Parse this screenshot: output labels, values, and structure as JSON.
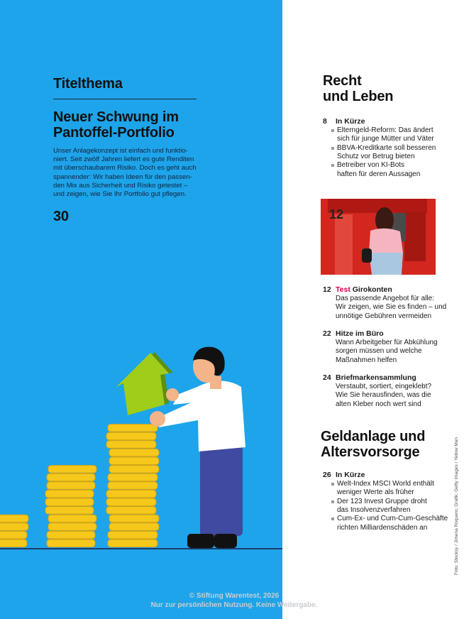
{
  "left": {
    "section": "Titelthema",
    "headline": [
      "Neuer Schwung im",
      "Pantoffel-Portfolio"
    ],
    "body": [
      "Unser Anlagekonzept ist einfach und funktio-",
      "niert. Seit zwölf Jahren liefert es gute Renditen",
      "mit überschaubarem Risiko. Doch es geht auch",
      "spannender: Wir haben Ideen für den passen-",
      "den Mix aus Sicherheit und Risiko getestet –",
      "und zeigen, wie Sie Ihr Portfolio gut pflegen."
    ],
    "page": "30"
  },
  "right": {
    "section1": {
      "heading": [
        "Recht",
        "und Leben"
      ],
      "entries": [
        {
          "page": "8",
          "title": "In Kürze",
          "bullets": [
            [
              "Elterngeld-Reform: Das ändert",
              "sich für junge Mütter und Väter"
            ],
            [
              "BBVA-Kreditkarte soll besseren",
              "Schutz vor Betrug bieten"
            ],
            [
              "Betreiber von KI-Bots",
              "haften für deren Aussagen"
            ]
          ]
        },
        {
          "page": "12",
          "tag": "Test",
          "title": "Girokonten",
          "text": [
            "Das passende Angebot für alle:",
            "Wir zeigen, wie Sie es finden – und",
            "unnötige Gebühren vermeiden"
          ]
        },
        {
          "page": "22",
          "title": "Hitze im Büro",
          "text": [
            "Wann Arbeitgeber für Abkühlung",
            "sorgen müssen und welche",
            "Maßnahmen helfen"
          ]
        },
        {
          "page": "24",
          "title": "Briefmarkensammlung",
          "text": [
            "Verstaubt, sortiert, eingeklebt?",
            "Wie Sie herausfinden, was die",
            "alten Kleber noch wert sind"
          ]
        }
      ]
    },
    "photo": {
      "label": "12"
    },
    "section2": {
      "heading": [
        "Geldanlage und",
        "Altersvorsorge"
      ],
      "entries": [
        {
          "page": "26",
          "title": "In Kürze",
          "bullets": [
            [
              "Welt-Index MSCI World enthält",
              "weniger Werte als früher"
            ],
            [
              "Der 123 Invest Gruppe droht",
              "das Insolvenzverfahren"
            ],
            [
              "Cum-Ex- und Cum-Cum-Geschäfte",
              "richten Milliardenschäden an"
            ]
          ]
        }
      ]
    }
  },
  "credit": "Foto: Stocksy / Jimena Roquero; Grafik: Getty Images / Yellow Man",
  "watermark": [
    "© Stiftung Warentest, 2026",
    "Nur zur persönlichen Nutzung. Keine Weitergabe."
  ]
}
